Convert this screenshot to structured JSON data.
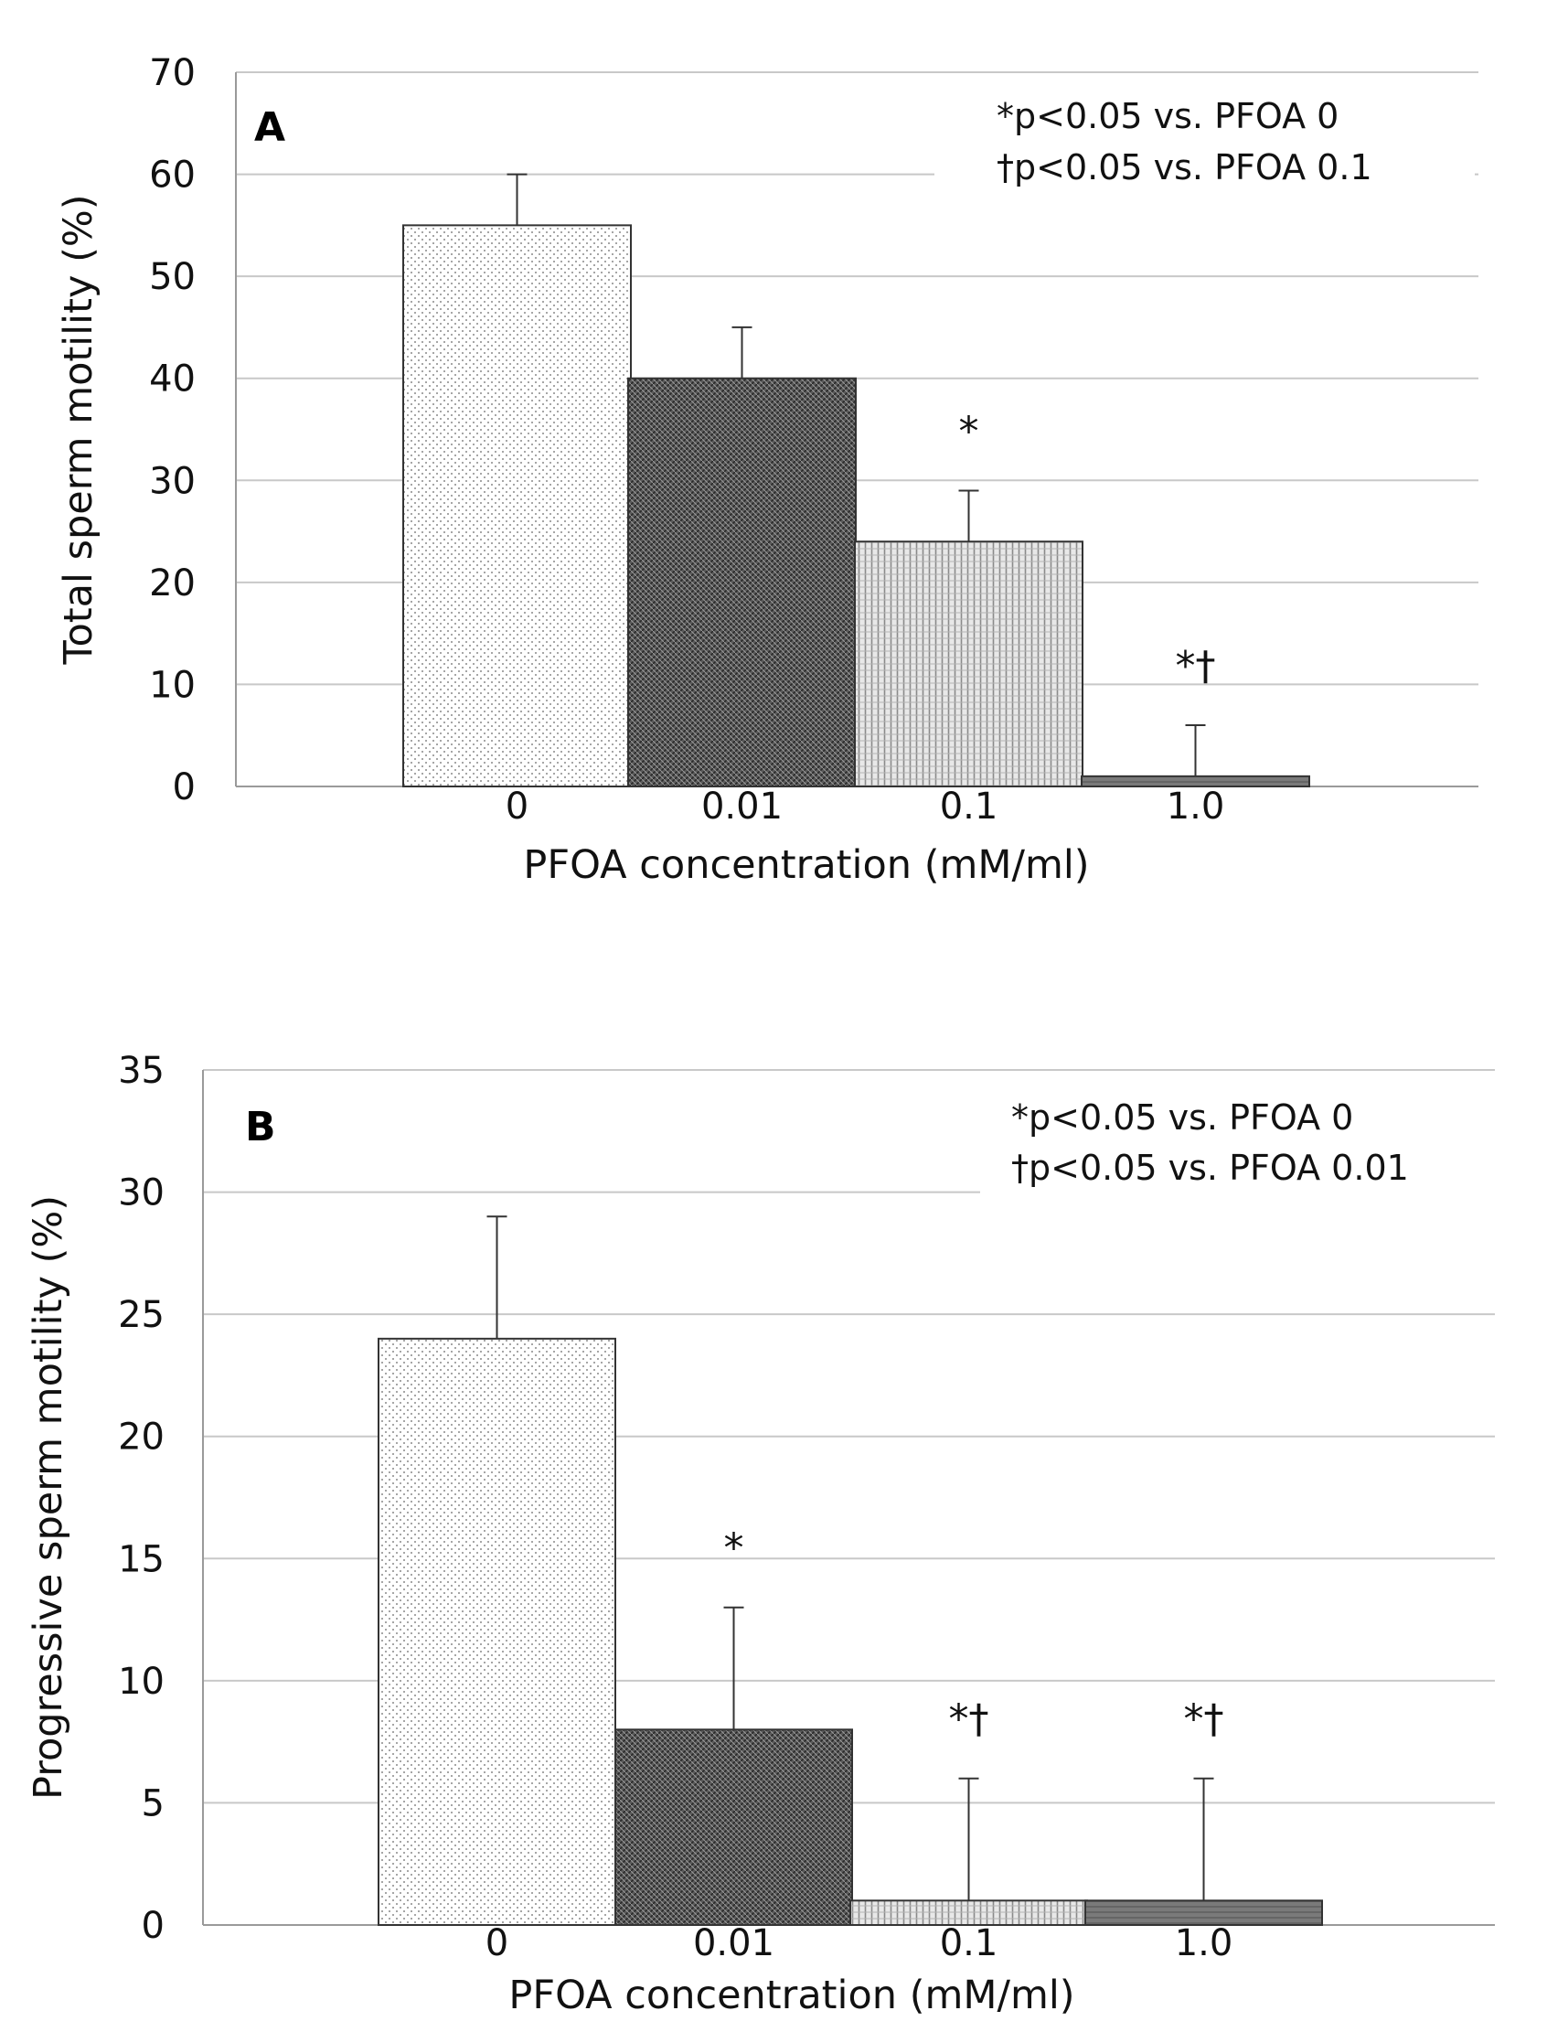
{
  "chart_data": [
    {
      "type": "bar",
      "panel": "A",
      "xlabel": "PFOA concentration (mM/ml)",
      "ylabel": "Total sperm motility (%)",
      "categories": [
        "0",
        "0.01",
        "0.1",
        "1.0"
      ],
      "values": [
        55,
        40,
        24,
        1
      ],
      "errors": [
        5,
        5,
        5,
        5
      ],
      "significance": [
        "",
        "",
        "*",
        "*†"
      ],
      "ylim": [
        0,
        70
      ],
      "yticks": [
        0,
        10,
        20,
        30,
        40,
        50,
        60,
        70
      ],
      "ytick_labels": [
        "0",
        "10",
        "20",
        "30",
        "40",
        "50",
        "60",
        "70"
      ],
      "notes": [
        "*p<0.05 vs. PFOA 0",
        "†p<0.05 vs. PFOA 0.1"
      ],
      "grid": true,
      "bar_patterns": [
        "dots",
        "crosshatch",
        "vlines",
        "solid"
      ]
    },
    {
      "type": "bar",
      "panel": "B",
      "xlabel": "PFOA concentration (mM/ml)",
      "ylabel": "Progressive sperm motility (%)",
      "categories": [
        "0",
        "0.01",
        "0.1",
        "1.0"
      ],
      "values": [
        24,
        8,
        1,
        1
      ],
      "errors": [
        5,
        5,
        5,
        5
      ],
      "significance": [
        "",
        "*",
        "*†",
        "*†"
      ],
      "ylim": [
        0,
        35
      ],
      "yticks": [
        0,
        5,
        10,
        15,
        20,
        25,
        30,
        35
      ],
      "ytick_labels": [
        "0",
        "5",
        "10",
        "15",
        "20",
        "25",
        "30",
        "35"
      ],
      "notes": [
        "*p<0.05 vs. PFOA 0",
        "†p<0.05 vs. PFOA 0.01"
      ],
      "grid": true,
      "bar_patterns": [
        "dots",
        "crosshatch",
        "vlines",
        "solid"
      ]
    }
  ]
}
